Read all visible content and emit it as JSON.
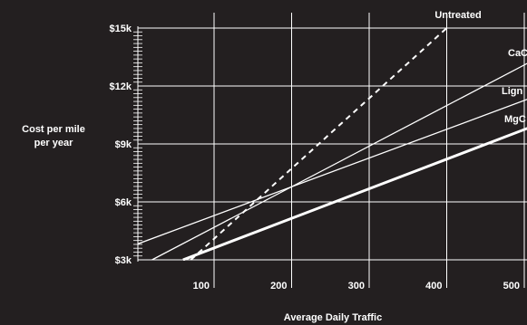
{
  "chart_data": {
    "type": "line",
    "title": "",
    "xlabel": "Average Daily Traffic",
    "ylabel_lines": [
      "Cost per mile",
      "per year"
    ],
    "x_ticks": [
      100,
      200,
      300,
      400,
      500
    ],
    "y_ticks": [
      3000,
      6000,
      9000,
      12000,
      15000
    ],
    "y_tick_labels": [
      "$3k",
      "$6k",
      "$9k",
      "$12k",
      "$15k"
    ],
    "xlim": [
      0,
      510
    ],
    "ylim": [
      3000,
      15000
    ],
    "grid": "vertical lines at x ticks, horizontal lines at y ticks",
    "series": [
      {
        "name": "Untreated",
        "style": "dashed",
        "weight": "medium",
        "x": [
          70,
          400
        ],
        "y": [
          3000,
          15000
        ]
      },
      {
        "name": "CaCl",
        "style": "solid",
        "weight": "thin",
        "x": [
          20,
          510
        ],
        "y": [
          3000,
          13300
        ]
      },
      {
        "name": "Lignin",
        "style": "solid",
        "weight": "thin",
        "x": [
          0,
          510
        ],
        "y": [
          3800,
          11400
        ]
      },
      {
        "name": "MgCl",
        "style": "solid",
        "weight": "thick",
        "x": [
          60,
          510
        ],
        "y": [
          3000,
          9900
        ]
      }
    ],
    "series_labels": [
      "Untreated",
      "CaC",
      "Lign",
      "MgC"
    ]
  }
}
